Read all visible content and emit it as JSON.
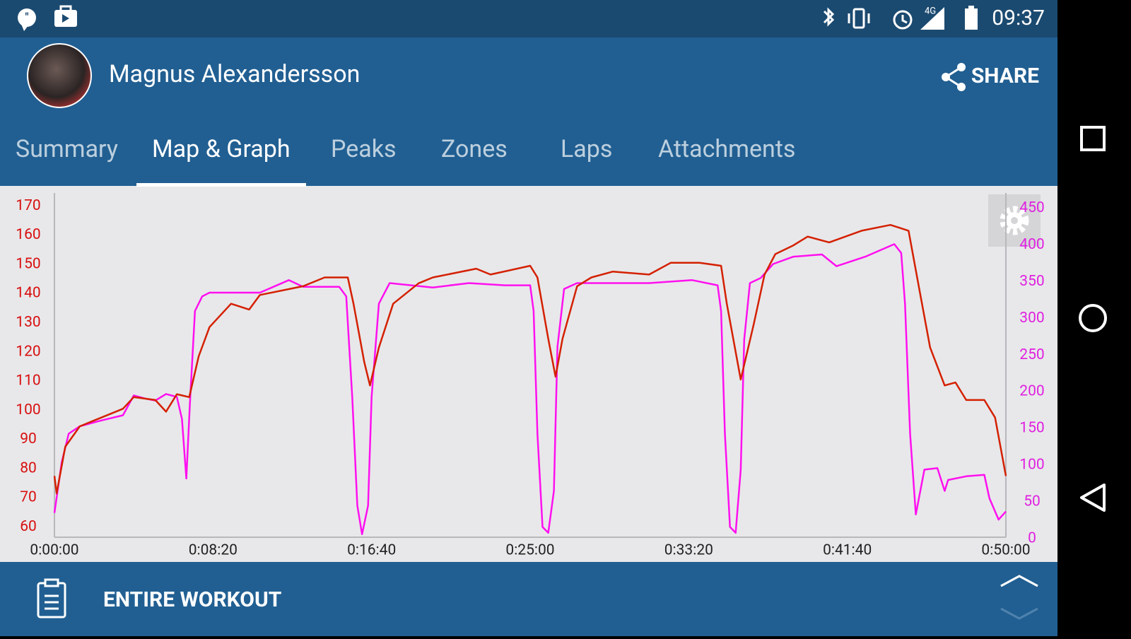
{
  "status_bar": {
    "time": "09:37",
    "network": "4G"
  },
  "header": {
    "name": "Magnus Alexandersson",
    "share": "SHARE"
  },
  "tabs": [
    "Summary",
    "Map & Graph",
    "Peaks",
    "Zones",
    "Laps",
    "Attachments"
  ],
  "active_tab": 1,
  "chart_data": {
    "type": "line",
    "xlim": [
      0,
      3000
    ],
    "xticks": [
      {
        "value": 0,
        "label": "0:00:00"
      },
      {
        "value": 500,
        "label": "0:08:20"
      },
      {
        "value": 1000,
        "label": "0:16:40"
      },
      {
        "value": 1500,
        "label": "0:25:00"
      },
      {
        "value": 2000,
        "label": "0:33:20"
      },
      {
        "value": 2500,
        "label": "0:41:40"
      },
      {
        "value": 3000,
        "label": "0:50:00"
      }
    ],
    "ylim": [
      56,
      172
    ],
    "yticks": [
      60,
      70,
      80,
      90,
      100,
      110,
      120,
      130,
      140,
      150,
      160,
      170
    ],
    "y2lim": [
      0,
      461
    ],
    "y2ticks": [
      0,
      50,
      100,
      150,
      200,
      250,
      300,
      350,
      400,
      450
    ],
    "ytick_color": "#d81010",
    "y2tick_color": "#e020e0",
    "series": [
      {
        "color": "#d42000",
        "x": [
          0,
          7,
          34,
          80,
          148,
          216,
          250,
          318,
          352,
          386,
          425,
          455,
          489,
          557,
          614,
          648,
          784,
          852,
          925,
          943,
          977,
          995,
          1023,
          1068,
          1148,
          1193,
          1330,
          1375,
          1500,
          1523,
          1557,
          1580,
          1602,
          1648,
          1693,
          1761,
          1875,
          1943,
          2034,
          2102,
          2120,
          2164,
          2205,
          2239,
          2273,
          2330,
          2375,
          2443,
          2545,
          2636,
          2693,
          2727,
          2761,
          2807,
          2841,
          2875,
          2932,
          2966,
          3000
        ],
        "values": [
          77,
          71,
          87,
          94,
          97,
          100,
          104,
          103,
          99,
          105,
          104,
          118,
          128,
          136,
          134,
          139,
          142,
          145,
          145,
          136,
          116,
          108,
          121,
          136,
          143,
          145,
          148,
          146,
          149,
          145,
          124,
          111,
          124,
          142,
          145,
          147,
          146,
          150,
          150,
          149,
          136,
          110,
          129,
          146,
          153,
          156,
          159,
          157,
          161,
          163,
          161,
          141,
          121,
          108,
          109,
          103,
          103,
          97,
          77
        ]
      },
      {
        "color": "#ff10f0",
        "axis": "y2",
        "x": [
          0,
          23,
          45,
          80,
          148,
          216,
          250,
          284,
          318,
          352,
          386,
          402,
          416,
          427,
          443,
          466,
          489,
          557,
          648,
          739,
          784,
          898,
          920,
          939,
          955,
          970,
          989,
          1000,
          1023,
          1057,
          1193,
          1307,
          1420,
          1500,
          1511,
          1523,
          1539,
          1557,
          1575,
          1586,
          1607,
          1648,
          1875,
          2011,
          2091,
          2102,
          2114,
          2130,
          2148,
          2164,
          2175,
          2193,
          2227,
          2266,
          2330,
          2420,
          2466,
          2557,
          2648,
          2670,
          2682,
          2698,
          2716,
          2743,
          2784,
          2807,
          2818,
          2875,
          2932,
          2948,
          2977,
          3000
        ],
        "values": [
          33,
          102,
          141,
          151,
          159,
          166,
          193,
          189,
          186,
          195,
          191,
          161,
          80,
          181,
          308,
          328,
          333,
          333,
          333,
          350,
          341,
          341,
          328,
          191,
          43,
          4,
          43,
          191,
          318,
          346,
          340,
          346,
          343,
          343,
          308,
          141,
          14,
          6,
          63,
          259,
          338,
          346,
          346,
          350,
          343,
          308,
          141,
          14,
          6,
          92,
          269,
          346,
          353,
          372,
          382,
          385,
          369,
          382,
          399,
          387,
          318,
          141,
          31,
          92,
          94,
          63,
          78,
          83,
          85,
          53,
          24,
          35
        ]
      }
    ]
  },
  "footer": {
    "label": "ENTIRE WORKOUT"
  }
}
